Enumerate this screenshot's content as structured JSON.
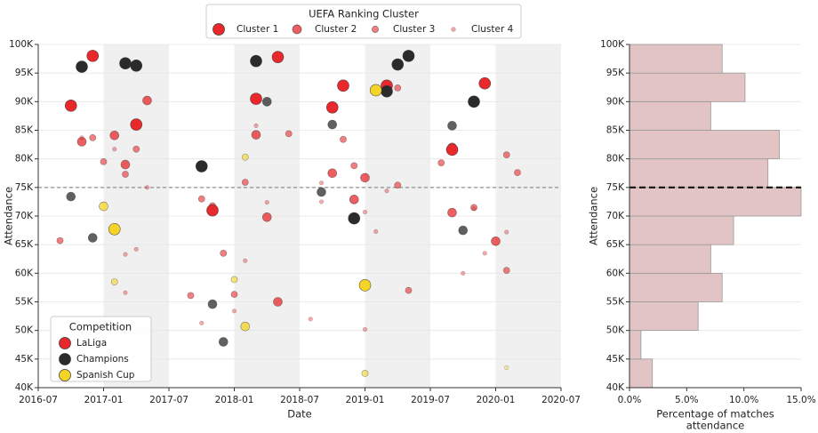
{
  "chart_data": [
    {
      "type": "scatter",
      "xlabel": "Date",
      "ylabel": "Attendance",
      "xlim": [
        "2016-07",
        "2020-07"
      ],
      "xticks": [
        "2016-07",
        "2017-01",
        "2017-07",
        "2018-01",
        "2018-07",
        "2019-01",
        "2019-07",
        "2020-01",
        "2020-07"
      ],
      "ylim": [
        40000,
        100000
      ],
      "yticks": [
        {
          "value": 40000,
          "label": "40K"
        },
        {
          "value": 45000,
          "label": "45K"
        },
        {
          "value": 50000,
          "label": "50K"
        },
        {
          "value": 55000,
          "label": "55K"
        },
        {
          "value": 60000,
          "label": "60K"
        },
        {
          "value": 65000,
          "label": "65K"
        },
        {
          "value": 70000,
          "label": "70K"
        },
        {
          "value": 75000,
          "label": "75K"
        },
        {
          "value": 80000,
          "label": "80K"
        },
        {
          "value": 85000,
          "label": "85K"
        },
        {
          "value": 90000,
          "label": "90K"
        },
        {
          "value": 95000,
          "label": "95K"
        },
        {
          "value": 100000,
          "label": "100K"
        }
      ],
      "grid": true,
      "hline": 75000,
      "shaded_spans": [
        [
          "2017-01",
          "2017-07"
        ],
        [
          "2018-01",
          "2018-07"
        ],
        [
          "2019-01",
          "2019-07"
        ],
        [
          "2020-01",
          "2020-07"
        ]
      ],
      "legend": {
        "title": "Competition",
        "loc": "lower left"
      },
      "size_legend": {
        "title": "UEFA Ranking Cluster",
        "labels": [
          "Cluster 1",
          "Cluster 2",
          "Cluster 3",
          "Cluster 4"
        ],
        "color": "#e8282b",
        "loc": "upper center"
      },
      "series": [
        {
          "name": "LaLiga",
          "color": "#e8282b",
          "x": [
            "2016-10",
            "2016-12",
            "2016-11",
            "2016-12",
            "2017-01",
            "2016-09",
            "2016-11",
            "2017-02",
            "2017-04",
            "2017-05",
            "2017-03",
            "2017-03",
            "2017-04",
            "2017-02",
            "2017-05",
            "2017-04",
            "2017-03",
            "2017-03",
            "2017-10",
            "2017-11",
            "2017-11",
            "2017-09",
            "2017-10",
            "2017-12",
            "2018-01",
            "2018-01",
            "2018-02",
            "2018-02",
            "2018-03",
            "2018-03",
            "2018-03",
            "2018-04",
            "2018-04",
            "2018-05",
            "2018-05",
            "2018-06",
            "2018-08",
            "2018-09",
            "2018-09",
            "2018-10",
            "2018-10",
            "2018-11",
            "2018-11",
            "2018-12",
            "2018-12",
            "2019-01",
            "2019-01",
            "2019-01",
            "2019-02",
            "2019-03",
            "2019-03",
            "2019-04",
            "2019-04",
            "2019-05",
            "2019-08",
            "2019-09",
            "2019-09",
            "2019-09",
            "2019-10",
            "2019-11",
            "2019-11",
            "2019-12",
            "2019-12",
            "2020-01",
            "2020-02",
            "2020-02",
            "2020-02",
            "2020-03"
          ],
          "values": [
            89300,
            98000,
            83000,
            83700,
            79500,
            65700,
            83700,
            84100,
            86000,
            90200,
            79000,
            77300,
            81700,
            81700,
            75000,
            64200,
            63300,
            56600,
            73000,
            71800,
            71000,
            56100,
            51300,
            63500,
            53400,
            56300,
            62200,
            75900,
            85800,
            90500,
            84200,
            72400,
            69800,
            97800,
            55000,
            84400,
            52000,
            72500,
            75800,
            77500,
            89000,
            92800,
            83400,
            72900,
            78800,
            70700,
            50200,
            76700,
            67300,
            74400,
            92800,
            92400,
            75400,
            57000,
            79300,
            82000,
            81600,
            70600,
            60000,
            71500,
            71300,
            93200,
            63500,
            65600,
            60500,
            80700,
            67200,
            77600
          ],
          "cluster": [
            1,
            1,
            2,
            3,
            3,
            3,
            4,
            2,
            1,
            2,
            2,
            3,
            3,
            4,
            4,
            4,
            4,
            4,
            3,
            3,
            1,
            3,
            4,
            3,
            4,
            3,
            4,
            3,
            4,
            1,
            2,
            4,
            2,
            1,
            2,
            3,
            4,
            4,
            4,
            2,
            1,
            1,
            3,
            2,
            3,
            4,
            4,
            2,
            4,
            4,
            1,
            3,
            3,
            3,
            3,
            2,
            1,
            2,
            4,
            3,
            4,
            1,
            4,
            2,
            3,
            3,
            4,
            3
          ]
        },
        {
          "name": "Champions",
          "color": "#2b2b2b",
          "x": [
            "2016-11",
            "2016-10",
            "2016-12",
            "2017-03",
            "2017-04",
            "2017-10",
            "2017-11",
            "2017-12",
            "2018-03",
            "2018-04",
            "2018-09",
            "2018-10",
            "2018-12",
            "2019-03",
            "2019-04",
            "2019-05",
            "2019-09",
            "2019-10",
            "2019-11"
          ],
          "values": [
            96100,
            73400,
            66200,
            96700,
            96300,
            78700,
            54600,
            48000,
            97100,
            90000,
            74200,
            86000,
            69600,
            91800,
            96500,
            98000,
            85800,
            67500,
            90000
          ],
          "cluster": [
            1,
            2,
            2,
            1,
            1,
            1,
            2,
            2,
            1,
            2,
            2,
            2,
            1,
            1,
            1,
            1,
            2,
            2,
            1
          ]
        },
        {
          "name": "Spanish Cup",
          "color": "#f5d327",
          "x": [
            "2017-01",
            "2017-02",
            "2017-02",
            "2018-02",
            "2018-01",
            "2018-02",
            "2019-02",
            "2019-01",
            "2019-01",
            "2020-02"
          ],
          "values": [
            71700,
            67700,
            58500,
            80300,
            58900,
            50700,
            92000,
            57900,
            42500,
            43500
          ],
          "cluster": [
            2,
            1,
            3,
            3,
            3,
            2,
            1,
            1,
            3,
            4
          ]
        }
      ]
    },
    {
      "type": "histogram",
      "orientation": "horizontal",
      "xlabel": [
        "Percentage of matches",
        "attendance"
      ],
      "ylabel": "Attendance",
      "bins": [
        40000,
        45000,
        50000,
        55000,
        60000,
        65000,
        70000,
        75000,
        80000,
        85000,
        90000,
        95000,
        100000
      ],
      "values": [
        2.0,
        1.0,
        6.0,
        8.1,
        7.1,
        9.1,
        15.0,
        12.1,
        13.1,
        7.1,
        10.1,
        8.1
      ],
      "color": "#e3c4c4",
      "xlim": [
        0,
        15
      ],
      "xticks": [
        {
          "value": 0,
          "label": "0.0%"
        },
        {
          "value": 5,
          "label": "5.0%"
        },
        {
          "value": 10,
          "label": "10.0%"
        },
        {
          "value": 15,
          "label": "15.0%"
        }
      ],
      "ylim": [
        40000,
        100000
      ],
      "yticks": [
        {
          "value": 40000,
          "label": "40K"
        },
        {
          "value": 45000,
          "label": "45K"
        },
        {
          "value": 50000,
          "label": "50K"
        },
        {
          "value": 55000,
          "label": "55K"
        },
        {
          "value": 60000,
          "label": "60K"
        },
        {
          "value": 65000,
          "label": "65K"
        },
        {
          "value": 70000,
          "label": "70K"
        },
        {
          "value": 75000,
          "label": "75K"
        },
        {
          "value": 80000,
          "label": "80K"
        },
        {
          "value": 85000,
          "label": "85K"
        },
        {
          "value": 90000,
          "label": "90K"
        },
        {
          "value": 95000,
          "label": "95K"
        },
        {
          "value": 100000,
          "label": "100K"
        }
      ],
      "grid": true,
      "hline": 75000
    }
  ]
}
